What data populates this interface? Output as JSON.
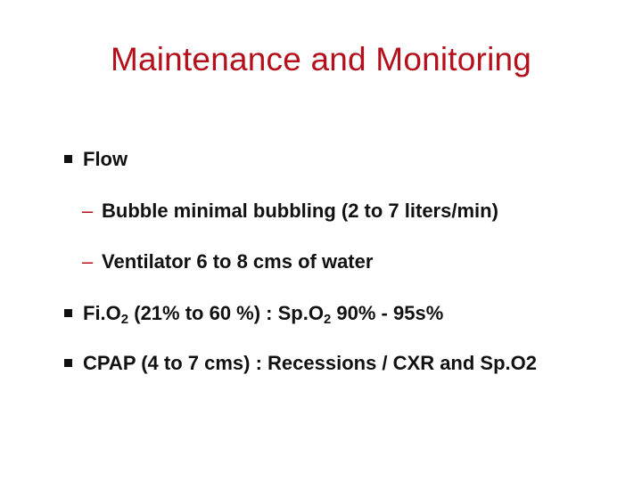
{
  "slide": {
    "title": "Maintenance and Monitoring",
    "bullets": [
      {
        "text": "Flow"
      },
      {
        "text": "Bubble  minimal bubbling (2 to 7 liters/min)"
      },
      {
        "text": "Ventilator 6 to 8 cms of water"
      },
      {
        "pre": "Fi.O",
        "sub1": "2",
        "mid": " (21% to 60 %) : Sp.O",
        "sub2": "2",
        "post": " 90% - 95s%"
      },
      {
        "text": "CPAP (4 to 7 cms) : Recessions / CXR and Sp.O2"
      }
    ],
    "markers": {
      "level1": "square-bullet-icon",
      "level2": "–"
    },
    "colors": {
      "title": "#b3101c",
      "text": "#111111",
      "dash": "#b3101c",
      "background": "#ffffff"
    }
  }
}
